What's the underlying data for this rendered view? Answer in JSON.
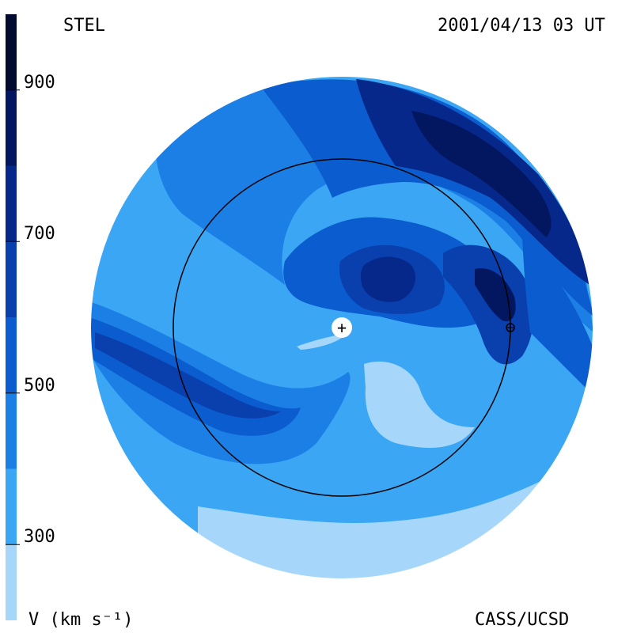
{
  "header": {
    "source": "STEL",
    "timestamp": "2001/04/13 03 UT"
  },
  "footer": {
    "credit": "CASS/UCSD"
  },
  "colorbar": {
    "label": "V (km s⁻¹)",
    "ticks": [
      "900",
      "700",
      "500",
      "300"
    ],
    "tick_values": [
      900,
      700,
      500,
      300
    ],
    "range": [
      200,
      1000
    ],
    "bands": [
      {
        "from": 200,
        "to": 300,
        "color": "#a6d7fb"
      },
      {
        "from": 300,
        "to": 400,
        "color": "#3aa6f4"
      },
      {
        "from": 400,
        "to": 500,
        "color": "#1b7fe6"
      },
      {
        "from": 500,
        "to": 600,
        "color": "#0b5cce"
      },
      {
        "from": 600,
        "to": 700,
        "color": "#0a3fae"
      },
      {
        "from": 700,
        "to": 800,
        "color": "#06288a"
      },
      {
        "from": 800,
        "to": 900,
        "color": "#031760"
      },
      {
        "from": 900,
        "to": 1000,
        "color": "#020a30"
      }
    ]
  },
  "markers": {
    "sun_symbol": "+",
    "earth_symbol": "⊕"
  }
}
